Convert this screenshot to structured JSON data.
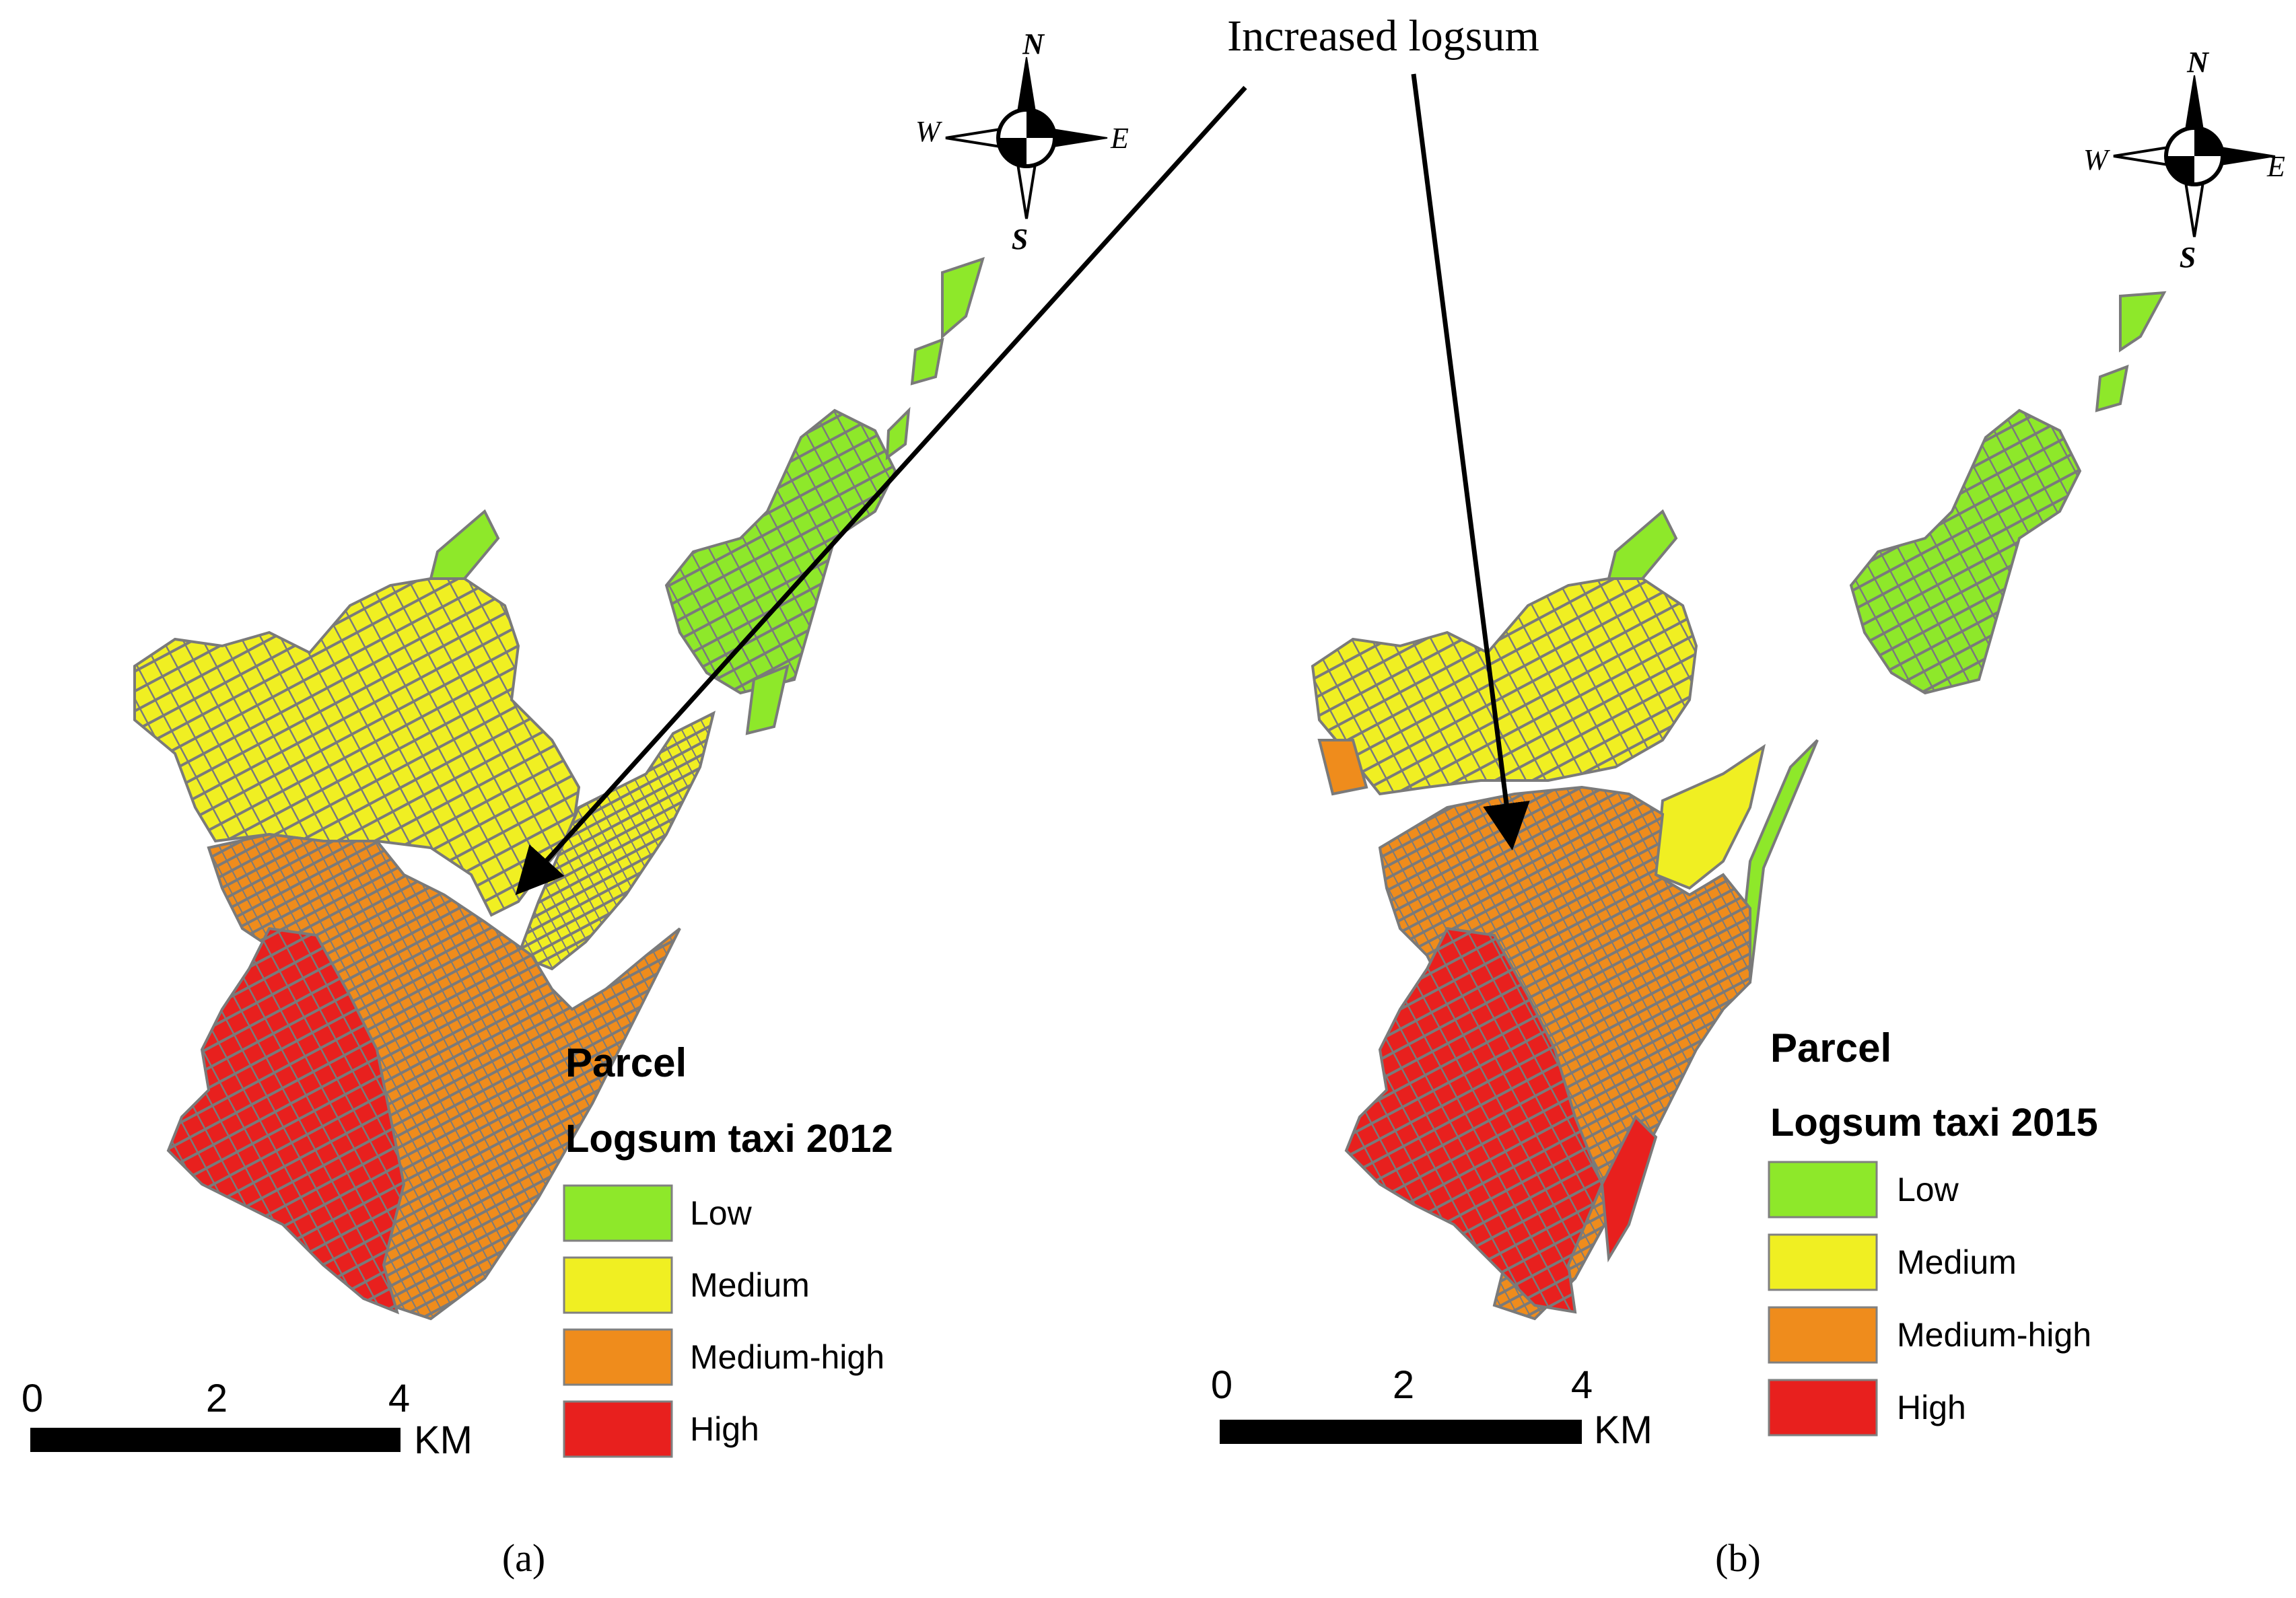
{
  "annotation": {
    "text": "Increased logsum"
  },
  "compass": {
    "north": "N",
    "south": "S",
    "east": "E",
    "west": "W"
  },
  "colors": {
    "low": "#8ee82a",
    "medium": "#f0ef22",
    "medium_high": "#ef8c1c",
    "high": "#e8201e",
    "boundary": "#7a7a7a",
    "scalebar": "#000000"
  },
  "panels": [
    {
      "caption": "(a)",
      "legend": {
        "title": "Parcel",
        "subtitle": "Logsum taxi 2012",
        "classes": [
          "Low",
          "Medium",
          "Medium-high",
          "High"
        ]
      },
      "scalebar": {
        "ticks": [
          "0",
          "2",
          "4"
        ],
        "unit": "KM"
      }
    },
    {
      "caption": "(b)",
      "legend": {
        "title": "Parcel",
        "subtitle": "Logsum taxi 2015",
        "classes": [
          "Low",
          "Medium",
          "Medium-high",
          "High"
        ]
      },
      "scalebar": {
        "ticks": [
          "0",
          "2",
          "4"
        ],
        "unit": "KM"
      }
    }
  ]
}
